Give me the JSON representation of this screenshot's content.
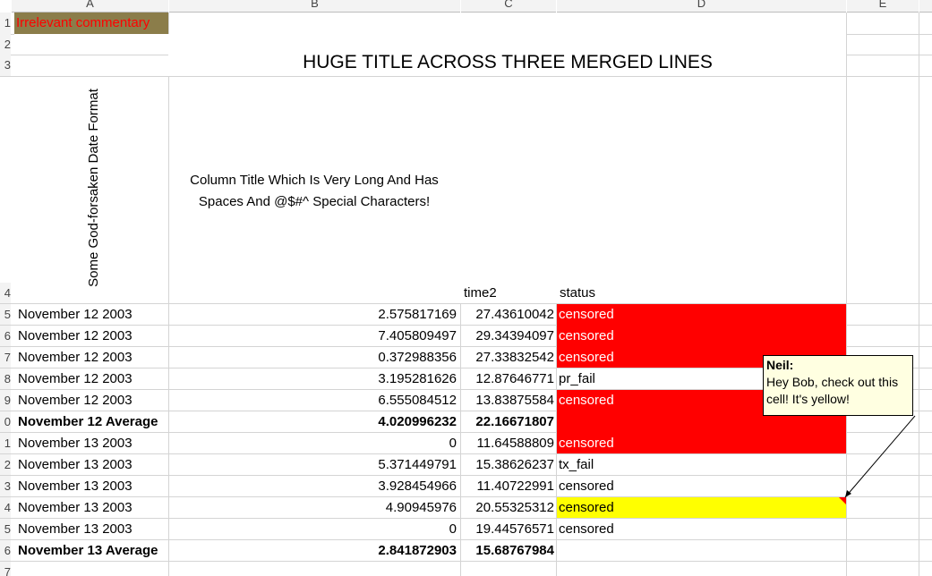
{
  "columns": {
    "a": "A",
    "b": "B",
    "c": "C",
    "d": "D",
    "e": "E"
  },
  "rows": [
    "1",
    "2",
    "3",
    "4",
    "5",
    "6",
    "7",
    "8",
    "9",
    "0",
    "1",
    "2",
    "3",
    "4",
    "5",
    "6",
    "7"
  ],
  "cells": {
    "a1": "Irrelevant commentary",
    "title": "HUGE TITLE ACROSS THREE MERGED LINES",
    "a4": "Some God-forsaken Date Format",
    "b4": "Column Title Which Is Very Long And Has Spaces And @$#^ Special Characters!",
    "c4": "time2",
    "d4": "status"
  },
  "data_rows": [
    {
      "date": "November 12 2003",
      "b": "2.575817169",
      "c": "27.43610042",
      "d": "censored",
      "bold": false
    },
    {
      "date": "November 12 2003",
      "b": "7.405809497",
      "c": "29.34394097",
      "d": "censored",
      "bold": false
    },
    {
      "date": "November 12 2003",
      "b": "0.372988356",
      "c": "27.33832542",
      "d": "censored",
      "bold": false
    },
    {
      "date": "November 12 2003",
      "b": "3.195281626",
      "c": "12.87646771",
      "d": "pr_fail",
      "bold": false
    },
    {
      "date": "November 12 2003",
      "b": "6.555084512",
      "c": "13.83875584",
      "d": "censored",
      "bold": false
    },
    {
      "date": "November 12 Average",
      "b": "4.020996232",
      "c": "22.16671807",
      "d": "",
      "bold": true
    },
    {
      "date": "November 13 2003",
      "b": "0",
      "c": "11.64588809",
      "d": "censored",
      "bold": false
    },
    {
      "date": "November 13 2003",
      "b": "5.371449791",
      "c": "15.38626237",
      "d": "tx_fail",
      "bold": false
    },
    {
      "date": "November 13 2003",
      "b": "3.928454966",
      "c": "11.40722991",
      "d": "censored",
      "bold": false
    },
    {
      "date": "November 13 2003",
      "b": "4.90945976",
      "c": "20.55325312",
      "d": "censored",
      "bold": false
    },
    {
      "date": "November 13 2003",
      "b": "0",
      "c": "19.44576571",
      "d": "censored",
      "bold": false
    },
    {
      "date": "November 13 Average",
      "b": "2.841872903",
      "c": "15.68767984",
      "d": "",
      "bold": true
    }
  ],
  "comment": {
    "author": "Neil:",
    "text": "Hey Bob, check out this cell! It's yellow!"
  },
  "colors": {
    "red_fill": "#ff0000",
    "yellow_fill": "#ffff00",
    "header_fill": "#8b7d4a",
    "header_text": "#ff0000",
    "note_bg": "#ffffe1"
  }
}
